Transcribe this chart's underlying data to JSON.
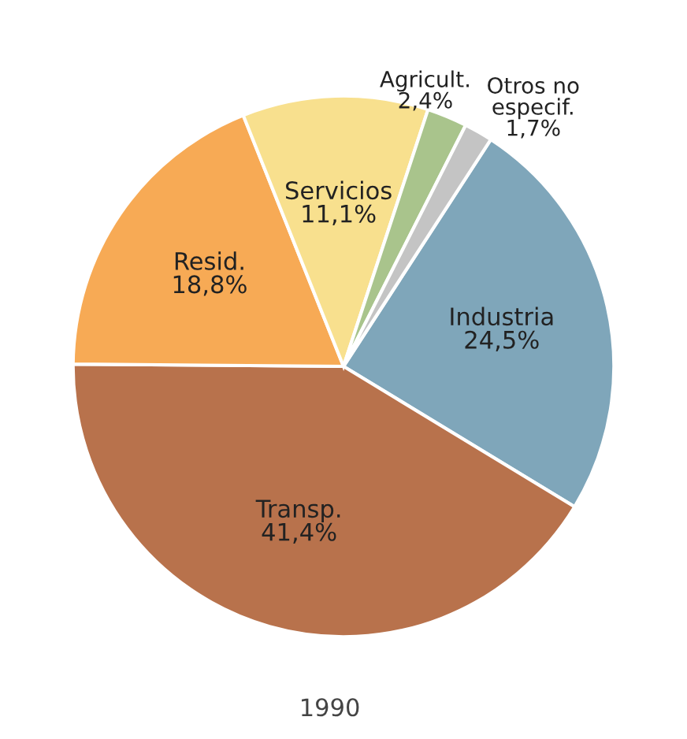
{
  "chart_data": {
    "type": "pie",
    "title": "1990",
    "categories": [
      "Industria",
      "Transp.",
      "Resid.",
      "Servicios",
      "Agricult.",
      "Otros no especif."
    ],
    "values": [
      24.5,
      41.4,
      18.8,
      11.1,
      2.4,
      1.7
    ],
    "value_labels": [
      "24,5%",
      "41,4%",
      "18,8%",
      "11,1%",
      "2,4%",
      "1,7%"
    ],
    "colors": [
      "#7fa6ba",
      "#b8724c",
      "#f7aa55",
      "#f8e08e",
      "#a9c48c",
      "#c4c4c4"
    ]
  }
}
